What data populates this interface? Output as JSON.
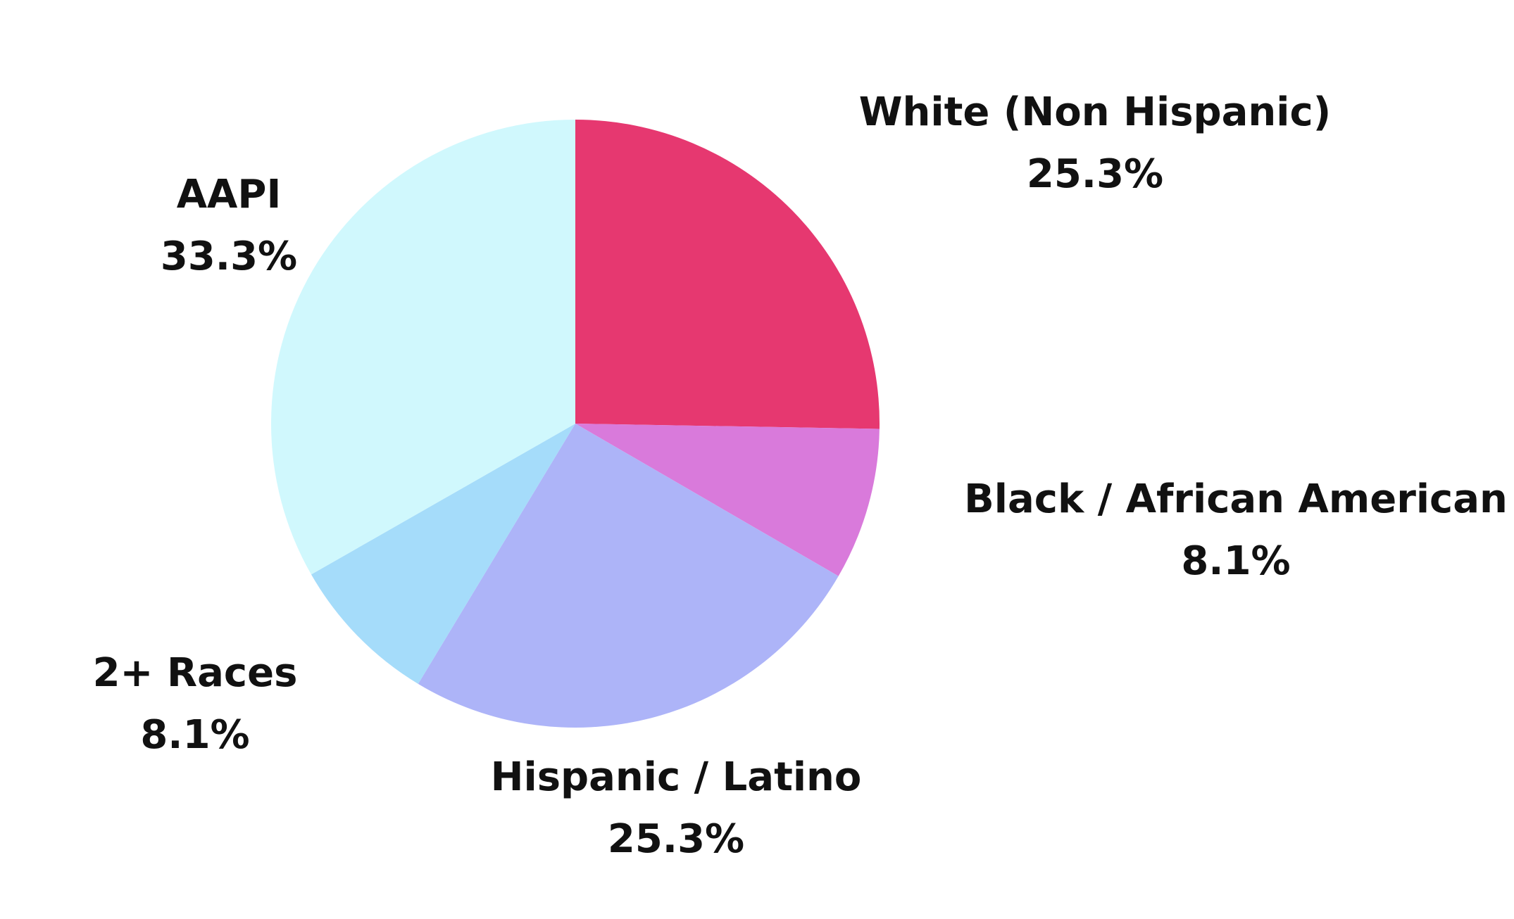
{
  "chart_data": {
    "type": "pie",
    "categories": [
      "White (Non Hispanic)",
      "Black / African American",
      "Hispanic / Latino",
      "2+ Races",
      "AAPI"
    ],
    "values": [
      25.3,
      8.1,
      25.3,
      8.1,
      33.3
    ],
    "value_labels": [
      "25.3%",
      "8.1%",
      "25.3%",
      "8.1%",
      "33.3%"
    ],
    "colors": [
      "#e63870",
      "#d97adb",
      "#adb4f8",
      "#a5dcfa",
      "#d0f8fd"
    ]
  }
}
